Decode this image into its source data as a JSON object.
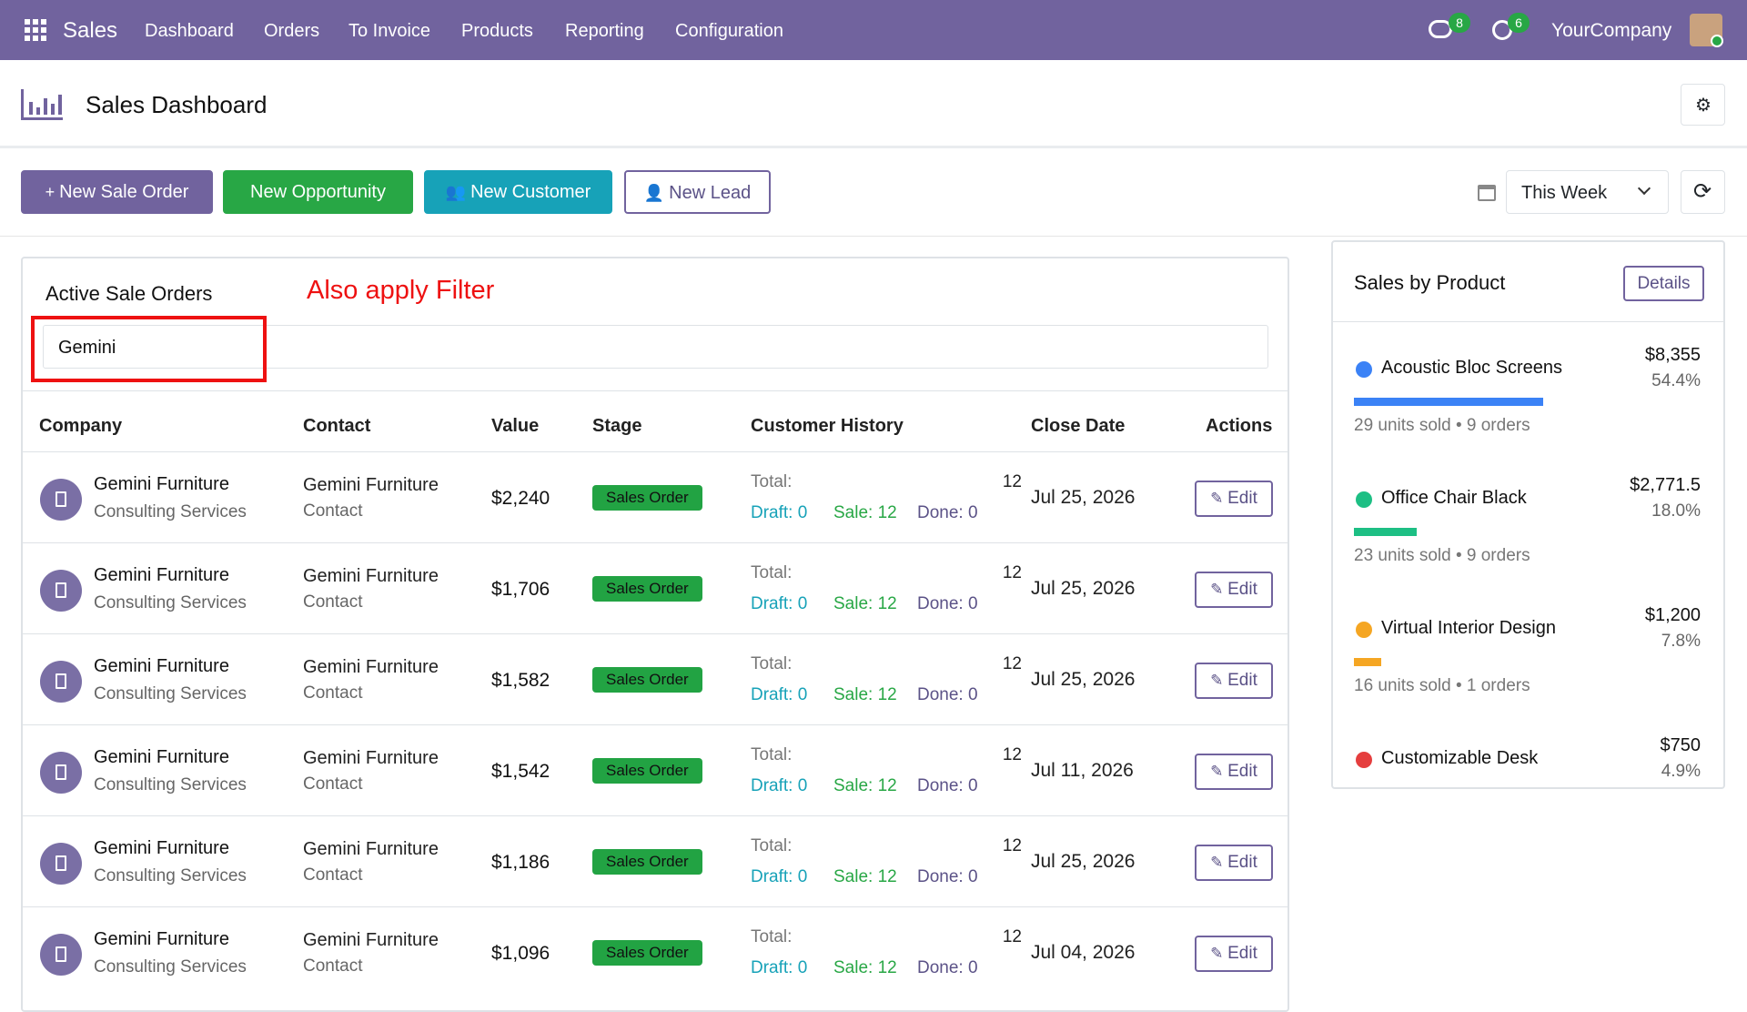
{
  "navbar": {
    "app": "Sales",
    "menu": [
      "Dashboard",
      "Orders",
      "To Invoice",
      "Products",
      "Reporting",
      "Configuration"
    ],
    "messages_badge": "8",
    "activities_badge": "6",
    "company": "YourCompany"
  },
  "header": {
    "title": "Sales Dashboard"
  },
  "toolbar": {
    "buttons": [
      "New Sale Order",
      "New Opportunity",
      "New Customer",
      "New Lead"
    ],
    "period": "This Week"
  },
  "orders": {
    "title": "Active Sale Orders",
    "annotation": "Also apply Filter",
    "search": "Gemini",
    "columns": [
      "Company",
      "Contact",
      "Value",
      "Stage",
      "Customer History",
      "Close Date",
      "Actions"
    ],
    "rows": [
      {
        "company": "Gemini Furniture",
        "company_sub": "Consulting Services",
        "contact": "Gemini Furniture",
        "contact_sub": "Contact",
        "value": "$2,240",
        "stage": "Sales Order",
        "total_label": "Total:",
        "total": "12",
        "draft": "Draft: 0",
        "sale": "Sale: 12",
        "done": "Done: 0",
        "close_date": "Jul 25, 2026",
        "action": "Edit"
      },
      {
        "company": "Gemini Furniture",
        "company_sub": "Consulting Services",
        "contact": "Gemini Furniture",
        "contact_sub": "Contact",
        "value": "$1,706",
        "stage": "Sales Order",
        "total_label": "Total:",
        "total": "12",
        "draft": "Draft: 0",
        "sale": "Sale: 12",
        "done": "Done: 0",
        "close_date": "Jul 25, 2026",
        "action": "Edit"
      },
      {
        "company": "Gemini Furniture",
        "company_sub": "Consulting Services",
        "contact": "Gemini Furniture",
        "contact_sub": "Contact",
        "value": "$1,582",
        "stage": "Sales Order",
        "total_label": "Total:",
        "total": "12",
        "draft": "Draft: 0",
        "sale": "Sale: 12",
        "done": "Done: 0",
        "close_date": "Jul 25, 2026",
        "action": "Edit"
      },
      {
        "company": "Gemini Furniture",
        "company_sub": "Consulting Services",
        "contact": "Gemini Furniture",
        "contact_sub": "Contact",
        "value": "$1,542",
        "stage": "Sales Order",
        "total_label": "Total:",
        "total": "12",
        "draft": "Draft: 0",
        "sale": "Sale: 12",
        "done": "Done: 0",
        "close_date": "Jul 11, 2026",
        "action": "Edit"
      },
      {
        "company": "Gemini Furniture",
        "company_sub": "Consulting Services",
        "contact": "Gemini Furniture",
        "contact_sub": "Contact",
        "value": "$1,186",
        "stage": "Sales Order",
        "total_label": "Total:",
        "total": "12",
        "draft": "Draft: 0",
        "sale": "Sale: 12",
        "done": "Done: 0",
        "close_date": "Jul 25, 2026",
        "action": "Edit"
      },
      {
        "company": "Gemini Furniture",
        "company_sub": "Consulting Services",
        "contact": "Gemini Furniture",
        "contact_sub": "Contact",
        "value": "$1,096",
        "stage": "Sales Order",
        "total_label": "Total:",
        "total": "12",
        "draft": "Draft: 0",
        "sale": "Sale: 12",
        "done": "Done: 0",
        "close_date": "Jul 04, 2026",
        "action": "Edit"
      }
    ]
  },
  "products": {
    "title": "Sales by Product",
    "details": "Details",
    "items": [
      {
        "name": "Acoustic Bloc Screens",
        "amount": "$8,355",
        "percent": 54.4,
        "percent_label": "54.4%",
        "stats": "29 units sold • 9 orders",
        "color": "#3b82f6"
      },
      {
        "name": "Office Chair Black",
        "amount": "$2,771.5",
        "percent": 18.0,
        "percent_label": "18.0%",
        "stats": "23 units sold • 9 orders",
        "color": "#1dbf84"
      },
      {
        "name": "Virtual Interior Design",
        "amount": "$1,200",
        "percent": 7.8,
        "percent_label": "7.8%",
        "stats": "16 units sold • 1 orders",
        "color": "#f5a623"
      },
      {
        "name": "Customizable Desk",
        "amount": "$750",
        "percent": 4.9,
        "percent_label": "4.9%",
        "stats": "",
        "color": "#e53e3e"
      }
    ]
  }
}
